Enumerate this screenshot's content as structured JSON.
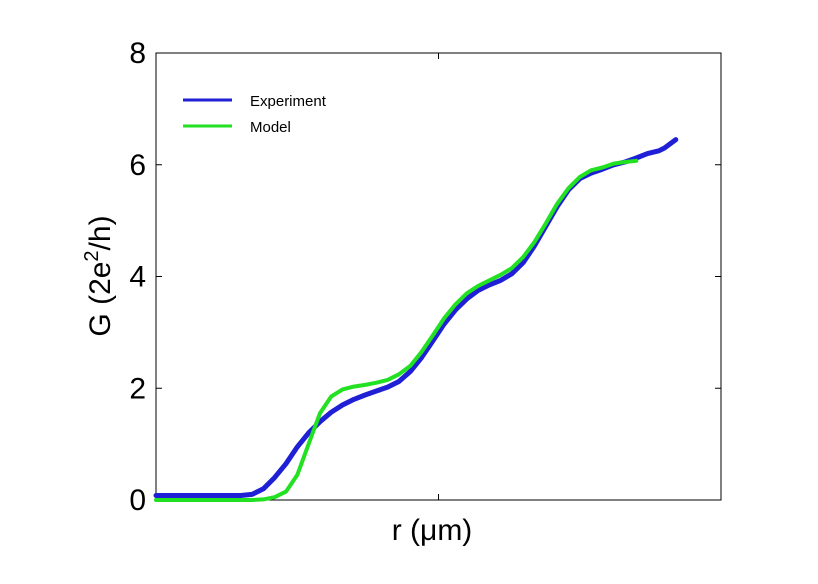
{
  "chart_data": {
    "type": "line",
    "title": "",
    "xlabel_main": "r (",
    "xlabel_mu": "μ",
    "xlabel_rest": "m)",
    "ylabel_main": "G (2e",
    "ylabel_sup": "2",
    "ylabel_rest": "/h)",
    "xlim": [
      0,
      1
    ],
    "ylim": [
      0,
      8
    ],
    "y_ticks": [
      "0",
      "2",
      "4",
      "6",
      "8"
    ],
    "y_tick_values": [
      0,
      2,
      4,
      6,
      8
    ],
    "x_tick_values": [
      0.5
    ],
    "grid": false,
    "legend_position": "top-left",
    "series": [
      {
        "name": "Experiment",
        "color": "#1f1fd6",
        "x": [
          0.0,
          0.05,
          0.1,
          0.15,
          0.17,
          0.19,
          0.21,
          0.23,
          0.25,
          0.27,
          0.29,
          0.31,
          0.33,
          0.35,
          0.37,
          0.39,
          0.41,
          0.43,
          0.45,
          0.47,
          0.49,
          0.51,
          0.53,
          0.55,
          0.57,
          0.59,
          0.61,
          0.63,
          0.65,
          0.67,
          0.69,
          0.71,
          0.73,
          0.75,
          0.77,
          0.79,
          0.81,
          0.83,
          0.85,
          0.87,
          0.89,
          0.9,
          0.92
        ],
        "y": [
          0.08,
          0.08,
          0.08,
          0.08,
          0.1,
          0.2,
          0.4,
          0.65,
          0.95,
          1.2,
          1.4,
          1.57,
          1.7,
          1.8,
          1.88,
          1.95,
          2.02,
          2.12,
          2.3,
          2.55,
          2.85,
          3.15,
          3.4,
          3.6,
          3.75,
          3.85,
          3.93,
          4.05,
          4.25,
          4.55,
          4.9,
          5.25,
          5.55,
          5.75,
          5.85,
          5.92,
          6.0,
          6.05,
          6.12,
          6.2,
          6.25,
          6.3,
          6.45
        ]
      },
      {
        "name": "Model",
        "color": "#22e022",
        "x": [
          0.0,
          0.05,
          0.1,
          0.15,
          0.17,
          0.19,
          0.21,
          0.23,
          0.25,
          0.27,
          0.29,
          0.31,
          0.33,
          0.35,
          0.37,
          0.39,
          0.41,
          0.43,
          0.45,
          0.47,
          0.49,
          0.51,
          0.53,
          0.55,
          0.57,
          0.59,
          0.61,
          0.63,
          0.65,
          0.67,
          0.69,
          0.71,
          0.73,
          0.75,
          0.77,
          0.79,
          0.81,
          0.83,
          0.85
        ],
        "y": [
          0.0,
          0.0,
          0.0,
          0.0,
          0.0,
          0.01,
          0.05,
          0.15,
          0.45,
          1.0,
          1.55,
          1.85,
          1.98,
          2.03,
          2.06,
          2.1,
          2.15,
          2.25,
          2.4,
          2.65,
          2.95,
          3.25,
          3.5,
          3.7,
          3.83,
          3.93,
          4.03,
          4.15,
          4.35,
          4.62,
          4.95,
          5.3,
          5.58,
          5.78,
          5.9,
          5.95,
          6.02,
          6.05,
          6.07
        ]
      }
    ]
  }
}
